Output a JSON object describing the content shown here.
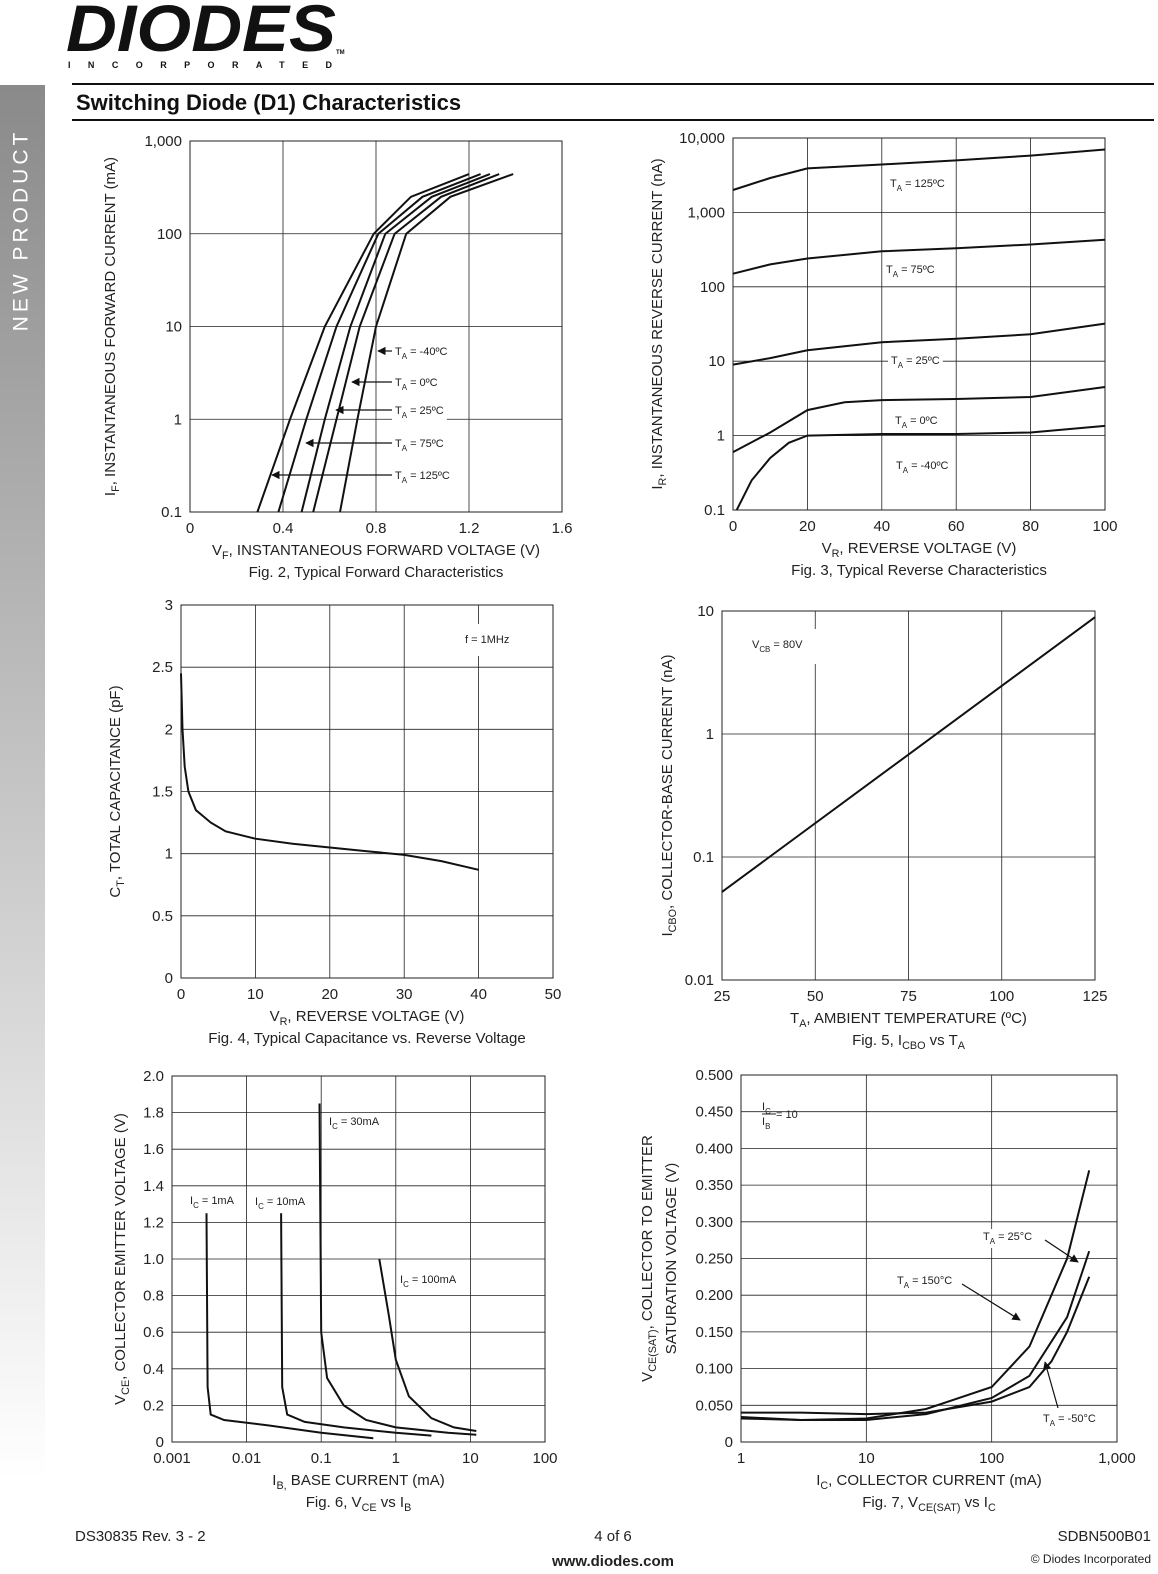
{
  "header": {
    "logo": "DIODES",
    "logo_subtitle": "INCORPORATED",
    "trademark": "TM"
  },
  "side_label": "NEW PRODUCT",
  "title": "Switching Diode (D1) Characteristics",
  "chart_data": [
    {
      "type": "line",
      "log_y": true,
      "grid": true,
      "color": "#111111",
      "x_label": [
        "V",
        "F",
        ", INSTANTANEOUS FORWARD VOLTAGE (V)"
      ],
      "y_label": [
        [
          "I",
          "F",
          ", INSTANTANEOUS FORWARD CURRENT (mA)"
        ]
      ],
      "caption": "Fig. 2, Typical Forward Characteristics",
      "xlim": [
        0,
        1.6
      ],
      "xticks": [
        0,
        0.4,
        0.8,
        1.2,
        1.6
      ],
      "ylim": [
        0.1,
        1000
      ],
      "yticks": [
        0.1,
        1,
        10,
        100,
        {
          "value": 1000,
          "label": "1,000"
        }
      ],
      "series": [
        {
          "name": [
            "T",
            "A",
            " = -40ºC"
          ],
          "x": [
            0.645,
            0.72,
            0.8,
            0.93,
            1.12,
            1.39
          ],
          "values": [
            0.1,
            1,
            10,
            100,
            250,
            440
          ]
        },
        {
          "name": [
            "T",
            "A",
            " = 0ºC"
          ],
          "x": [
            0.53,
            0.63,
            0.73,
            0.88,
            1.08,
            1.33
          ],
          "values": [
            0.1,
            1,
            10,
            100,
            250,
            440
          ]
        },
        {
          "name": [
            "T",
            "A",
            " = 25ºC"
          ],
          "x": [
            0.48,
            0.58,
            0.69,
            0.84,
            1.04,
            1.29
          ],
          "values": [
            0.1,
            1,
            10,
            100,
            250,
            440
          ]
        },
        {
          "name": [
            "T",
            "A",
            " = 75ºC"
          ],
          "x": [
            0.38,
            0.5,
            0.63,
            0.81,
            1.0,
            1.25
          ],
          "values": [
            0.1,
            1,
            10,
            100,
            250,
            440
          ]
        },
        {
          "name": [
            "T",
            "A",
            " = 125ºC"
          ],
          "x": [
            0.29,
            0.43,
            0.58,
            0.79,
            0.95,
            1.2
          ],
          "values": [
            0.1,
            1,
            10,
            100,
            250,
            440
          ]
        }
      ]
    },
    {
      "type": "line",
      "log_y": true,
      "grid": true,
      "color": "#111111",
      "x_label": [
        "V",
        "R",
        ", REVERSE VOLTAGE (V)"
      ],
      "y_label": [
        [
          "I",
          "R",
          ", INSTANTANEOUS REVERSE CURRENT (nA)"
        ]
      ],
      "caption": "Fig. 3, Typical Reverse Characteristics",
      "xlim": [
        0,
        100
      ],
      "xticks": [
        0,
        20,
        40,
        60,
        80,
        100
      ],
      "ylim": [
        0.1,
        10000
      ],
      "yticks": [
        0.1,
        1,
        10,
        100,
        {
          "value": 1000,
          "label": "1,000"
        },
        {
          "value": 10000,
          "label": "10,000"
        }
      ],
      "series": [
        {
          "name": [
            "T",
            "A",
            " = 125ºC"
          ],
          "x": [
            0,
            10,
            20,
            40,
            60,
            80,
            100
          ],
          "values": [
            2000,
            2900,
            3900,
            4400,
            5000,
            5800,
            7000
          ]
        },
        {
          "name": [
            "T",
            "A",
            " = 75ºC"
          ],
          "x": [
            0,
            10,
            20,
            40,
            60,
            80,
            100
          ],
          "values": [
            150,
            200,
            240,
            300,
            330,
            370,
            430
          ]
        },
        {
          "name": [
            "T",
            "A",
            " = 25ºC"
          ],
          "x": [
            0,
            10,
            20,
            40,
            60,
            80,
            100
          ],
          "values": [
            9,
            11,
            14,
            18,
            20,
            23,
            32
          ]
        },
        {
          "name": [
            "T",
            "A",
            " = 0ºC"
          ],
          "x": [
            0,
            10,
            20,
            30,
            40,
            60,
            80,
            100
          ],
          "values": [
            0.6,
            1.1,
            2.2,
            2.8,
            3,
            3.1,
            3.3,
            4.5
          ]
        },
        {
          "name": [
            "T",
            "A",
            " = -40ºC"
          ],
          "x": [
            1,
            5,
            10,
            15,
            20,
            40,
            60,
            80,
            100
          ],
          "values": [
            0.1,
            0.25,
            0.5,
            0.8,
            1,
            1.05,
            1.05,
            1.1,
            1.35
          ]
        }
      ]
    },
    {
      "type": "line",
      "grid": true,
      "color": "#111111",
      "x_label": [
        "V",
        "R",
        ", REVERSE VOLTAGE (V)"
      ],
      "y_label": [
        [
          "C",
          "T",
          ", TOTAL CAPACITANCE (pF)"
        ]
      ],
      "caption": "Fig. 4,  Typical Capacitance vs. Reverse Voltage",
      "xlim": [
        0,
        50
      ],
      "xticks": [
        0,
        10,
        20,
        30,
        40,
        50
      ],
      "ylim": [
        0,
        3
      ],
      "yticks": [
        0,
        0.5,
        1,
        1.5,
        2,
        2.5,
        3
      ],
      "annotations": [
        "f = 1MHz"
      ],
      "series": [
        {
          "x": [
            0,
            0.2,
            0.5,
            1,
            2,
            4,
            6,
            10,
            15,
            20,
            25,
            30,
            35,
            40
          ],
          "values": [
            2.45,
            2.0,
            1.7,
            1.5,
            1.35,
            1.25,
            1.18,
            1.12,
            1.08,
            1.05,
            1.02,
            0.99,
            0.94,
            0.87
          ]
        }
      ]
    },
    {
      "type": "line",
      "log_y": true,
      "grid": true,
      "color": "#111111",
      "x_label": [
        "T",
        "A",
        ", AMBIENT TEMPERATURE (ºC)"
      ],
      "y_label": [
        [
          "I",
          "CBO",
          ", COLLECTOR-BASE CURRENT (nA)"
        ]
      ],
      "caption": [
        "Fig. 5, I",
        "CBO",
        " vs T",
        "A"
      ],
      "xlim": [
        25,
        125
      ],
      "xticks": [
        25,
        50,
        75,
        100,
        125
      ],
      "ylim": [
        0.01,
        10
      ],
      "yticks": [
        0.01,
        0.1,
        1,
        10
      ],
      "annotations": [
        [
          "V",
          "CB",
          " = 80V"
        ]
      ],
      "series": [
        {
          "x": [
            25,
            125
          ],
          "values": [
            0.052,
            8.9
          ]
        }
      ]
    },
    {
      "type": "line",
      "log_x": true,
      "grid": true,
      "color": "#111111",
      "x_label": [
        "I",
        "B,",
        " BASE CURRENT (mA)"
      ],
      "y_label": [
        [
          "V",
          "CE",
          ", COLLECTOR EMITTER VOLTAGE (V)"
        ]
      ],
      "caption": [
        "Fig. 6, V",
        "CE",
        " vs I",
        "B"
      ],
      "xlim": [
        0.001,
        100
      ],
      "xticks": [
        0.001,
        0.01,
        0.1,
        1,
        10,
        100
      ],
      "ylim": [
        0,
        2
      ],
      "yticks": [
        0,
        0.2,
        0.4,
        0.6,
        0.8,
        {
          "value": 1,
          "label": "1.0"
        },
        1.2,
        1.4,
        1.6,
        1.8,
        {
          "value": 2,
          "label": "2.0"
        }
      ],
      "series": [
        {
          "name": [
            "I",
            "C",
            " = 1mA"
          ],
          "x": [
            0.0029,
            0.003,
            0.0033,
            0.005,
            0.02,
            0.1,
            0.5
          ],
          "values": [
            1.25,
            0.3,
            0.15,
            0.12,
            0.09,
            0.05,
            0.02
          ]
        },
        {
          "name": [
            "I",
            "C",
            " = 10mA"
          ],
          "x": [
            0.029,
            0.03,
            0.035,
            0.06,
            0.2,
            1,
            3
          ],
          "values": [
            1.25,
            0.3,
            0.15,
            0.11,
            0.08,
            0.05,
            0.035
          ]
        },
        {
          "name": [
            "I",
            "C",
            " = 30mA"
          ],
          "x": [
            0.095,
            0.1,
            0.12,
            0.2,
            0.4,
            1,
            5,
            12
          ],
          "values": [
            1.85,
            0.6,
            0.35,
            0.2,
            0.12,
            0.08,
            0.05,
            0.04
          ]
        },
        {
          "name": [
            "I",
            "C",
            " = 100mA"
          ],
          "x": [
            0.6,
            0.8,
            1,
            1.5,
            3,
            6,
            12
          ],
          "values": [
            1.0,
            0.7,
            0.45,
            0.25,
            0.13,
            0.08,
            0.06
          ]
        }
      ]
    },
    {
      "type": "line",
      "log_x": true,
      "grid": true,
      "color": "#111111",
      "x_label": [
        "I",
        "C",
        ", COLLECTOR CURRENT (mA)"
      ],
      "y_label": [
        [
          "V",
          "CE(SAT)",
          ", COLLECTOR TO EMITTER"
        ],
        "SATURATION VOLTAGE (V)"
      ],
      "caption": [
        "Fig. 7,  V",
        "CE(SAT)",
        " vs I",
        "C"
      ],
      "xlim": [
        1,
        1000
      ],
      "xticks": [
        1,
        10,
        100,
        {
          "value": 1000,
          "label": "1,000"
        }
      ],
      "ylim": [
        0,
        0.5
      ],
      "yticks": [
        0,
        {
          "value": 0.05,
          "label": "0.050"
        },
        {
          "value": 0.1,
          "label": "0.100"
        },
        {
          "value": 0.15,
          "label": "0.150"
        },
        {
          "value": 0.2,
          "label": "0.200"
        },
        {
          "value": 0.25,
          "label": "0.250"
        },
        {
          "value": 0.3,
          "label": "0.300"
        },
        {
          "value": 0.35,
          "label": "0.350"
        },
        {
          "value": 0.4,
          "label": "0.400"
        },
        {
          "value": 0.45,
          "label": "0.450"
        },
        {
          "value": 0.5,
          "label": "0.500"
        }
      ],
      "annotations": [
        {
          "numerator": [
            "I",
            "C"
          ],
          "denominator": [
            "I",
            "B"
          ],
          "text": " = 10"
        }
      ],
      "series": [
        {
          "name": [
            "T",
            "A",
            " = 25°C"
          ],
          "x": [
            1,
            3,
            10,
            30,
            100,
            200,
            400,
            600
          ],
          "values": [
            0.034,
            0.03,
            0.03,
            0.038,
            0.06,
            0.09,
            0.17,
            0.26
          ]
        },
        {
          "name": [
            "T",
            "A",
            " = 150°C"
          ],
          "x": [
            1,
            3,
            10,
            30,
            100,
            200,
            400,
            600
          ],
          "values": [
            0.032,
            0.03,
            0.032,
            0.045,
            0.075,
            0.13,
            0.25,
            0.37
          ]
        },
        {
          "name": [
            "T",
            "A",
            " = -50°C"
          ],
          "x": [
            1,
            3,
            10,
            30,
            100,
            200,
            300,
            400,
            600
          ],
          "values": [
            0.04,
            0.04,
            0.038,
            0.04,
            0.055,
            0.075,
            0.11,
            0.15,
            0.225
          ]
        }
      ]
    }
  ],
  "footer": {
    "doc_number": "DS30835 Rev. 3 - 2",
    "page": "4 of 6",
    "part_number": "SDBN500B01",
    "website": "www.diodes.com",
    "copyright": "© Diodes Incorporated"
  }
}
